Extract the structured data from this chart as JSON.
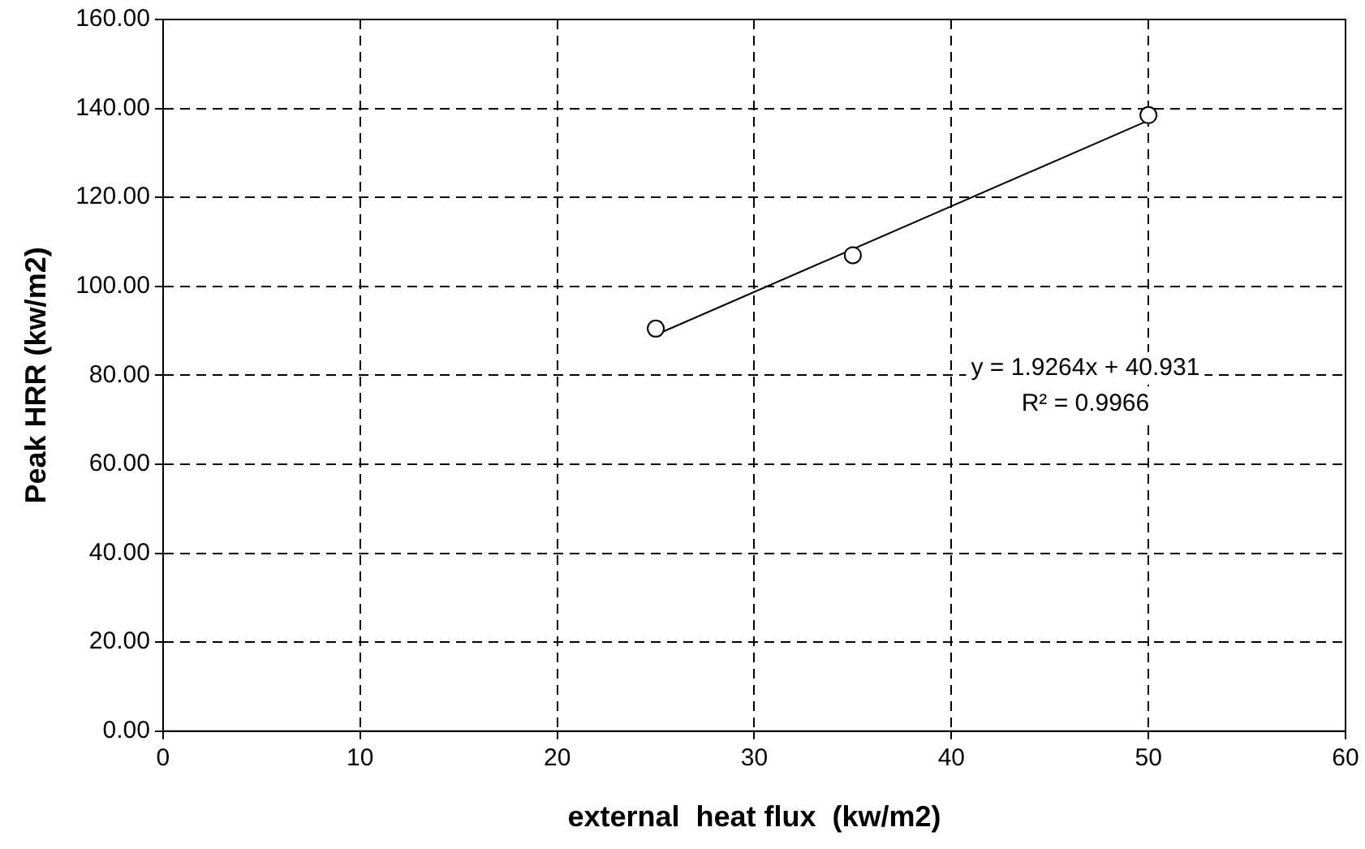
{
  "chart_data": {
    "type": "scatter",
    "xlabel": "external  heat flux  (kw/m2)",
    "ylabel": "Peak HRR (kw/m2)",
    "xlim": [
      0,
      60
    ],
    "xticks": [
      0,
      10,
      20,
      30,
      40,
      50,
      60
    ],
    "ylim": [
      0,
      160
    ],
    "yticks": [
      {
        "value": 0,
        "label": "0.00"
      },
      {
        "value": 20,
        "label": "20.00"
      },
      {
        "value": 40,
        "label": "40.00"
      },
      {
        "value": 60,
        "label": "60.00"
      },
      {
        "value": 80,
        "label": "80.00"
      },
      {
        "value": 100,
        "label": "100.00"
      },
      {
        "value": 120,
        "label": "120.00"
      },
      {
        "value": 140,
        "label": "140.00"
      },
      {
        "value": 160,
        "label": "160.00"
      }
    ],
    "grid": true,
    "legend": false,
    "series": [
      {
        "type": "scatter",
        "color": "#000000",
        "marker": "circle",
        "x": [
          25,
          35,
          50
        ],
        "values": [
          90.5,
          107,
          138.5
        ]
      },
      {
        "type": "line",
        "color": "#000000",
        "marker": "none",
        "line_style": "solid",
        "x": [
          25,
          50
        ],
        "values": [
          89.1,
          137.3
        ]
      }
    ],
    "annotations": [
      "y = 1.9264x + 40.931",
      "R² = 0.9966"
    ]
  }
}
